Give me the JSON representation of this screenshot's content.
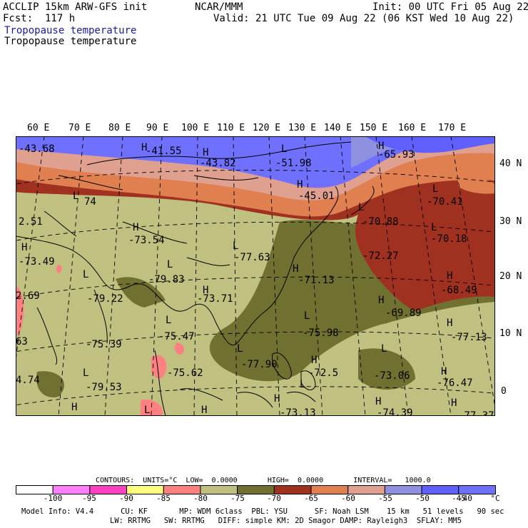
{
  "header": {
    "model": "ACCLIP 15km ARW-GFS init",
    "forecast": "Fcst:  117 h",
    "product": "Tropopause temperature",
    "product2": "Tropopause temperature",
    "center": "NCAR/MMM",
    "init": "Init: 00 UTC Fri 05 Aug 22",
    "valid": "Valid: 21 UTC Tue 09 Aug 22 (06 KST Wed 10 Aug 22)"
  },
  "lon_labels": [
    "60 E",
    "70 E",
    "80 E",
    "90 E",
    "100 E",
    "110 E",
    "120 E",
    "130 E",
    "140 E",
    "150 E",
    "160 E",
    "170 E"
  ],
  "lat_labels": [
    "40 N",
    "30 N",
    "20 N",
    "10 N",
    "0"
  ],
  "map_annotations": [
    {
      "text": "-43.68"
    },
    {
      "text": "H"
    },
    {
      "text": "-41.55"
    },
    {
      "text": "H"
    },
    {
      "text": "-43.82"
    },
    {
      "text": "L"
    },
    {
      "text": "-51.98"
    },
    {
      "text": "H"
    },
    {
      "text": "-65.93"
    },
    {
      "text": "H"
    },
    {
      "text": "-45.01"
    },
    {
      "text": "L"
    },
    {
      "text": "74"
    },
    {
      "text": "L"
    },
    {
      "text": "-70.41"
    },
    {
      "text": "2.51"
    },
    {
      "text": "L"
    },
    {
      "text": "-70.88"
    },
    {
      "text": "H"
    },
    {
      "text": "L"
    },
    {
      "text": "-73.54"
    },
    {
      "text": "L"
    },
    {
      "text": "-70.18"
    },
    {
      "text": "H"
    },
    {
      "text": "L"
    },
    {
      "text": "-77.63"
    },
    {
      "text": "-73.49"
    },
    {
      "text": "L"
    },
    {
      "text": "H"
    },
    {
      "text": "-72.27"
    },
    {
      "text": "H"
    },
    {
      "text": "-79.83"
    },
    {
      "text": "-71.13"
    },
    {
      "text": "-68.49"
    },
    {
      "text": "2.69"
    },
    {
      "text": "-79.22"
    },
    {
      "text": "H"
    },
    {
      "text": "-73.71"
    },
    {
      "text": "H"
    },
    {
      "text": "-69.89"
    },
    {
      "text": "L"
    },
    {
      "text": "L"
    },
    {
      "text": "-75.47"
    },
    {
      "text": "-75.98"
    },
    {
      "text": "H"
    },
    {
      "text": "-77.13"
    },
    {
      "text": "63"
    },
    {
      "text": "-75.39"
    },
    {
      "text": "L"
    },
    {
      "text": "H"
    },
    {
      "text": "L"
    },
    {
      "text": "-77.90"
    },
    {
      "text": "-72.5"
    },
    {
      "text": "-73.06"
    },
    {
      "text": "H"
    },
    {
      "text": "4.74"
    },
    {
      "text": "L"
    },
    {
      "text": "-75.62"
    },
    {
      "text": "-76.47"
    },
    {
      "text": "-79.53"
    },
    {
      "text": "H"
    },
    {
      "text": "H"
    },
    {
      "text": "L"
    },
    {
      "text": "-73.13"
    },
    {
      "text": "H"
    },
    {
      "text": "-74.39"
    },
    {
      "text": "H"
    },
    {
      "text": "H"
    },
    {
      "text": "-77.37"
    },
    {
      "text": "L"
    }
  ],
  "colorbar": {
    "info": "CONTOURS:  UNITS=°C  LOW=  0.0000       HIGH=  0.0000       INTERVAL=   1000.0",
    "swatches": [
      {
        "color": "#ffffff"
      },
      {
        "color": "#ff80ff"
      },
      {
        "color": "#ff40c0"
      },
      {
        "color": "#ffff80"
      },
      {
        "color": "#ff8080"
      },
      {
        "color": "#c0c080"
      },
      {
        "color": "#707030"
      },
      {
        "color": "#a03020"
      },
      {
        "color": "#e08050"
      },
      {
        "color": "#e0a090"
      },
      {
        "color": "#9090e0"
      },
      {
        "color": "#6060ff"
      },
      {
        "color": "#7070ff"
      }
    ],
    "labels": [
      "-100",
      "-95",
      "-90",
      "-85",
      "-80",
      "-75",
      "-70",
      "-65",
      "-60",
      "-55",
      "-50",
      "-45",
      "-40",
      "°C"
    ]
  },
  "footer": {
    "line1": "Model Info: V4.4      CU: KF       MP: WDM 6class  PBL: YSU      SF: Noah LSM    15 km   51 levels   90 sec",
    "line2": "LW: RRTMG   SW: RRTMG   DIFF: simple KM: 2D Smagor DAMP: Rayleigh3  SFLAY: MM5"
  }
}
